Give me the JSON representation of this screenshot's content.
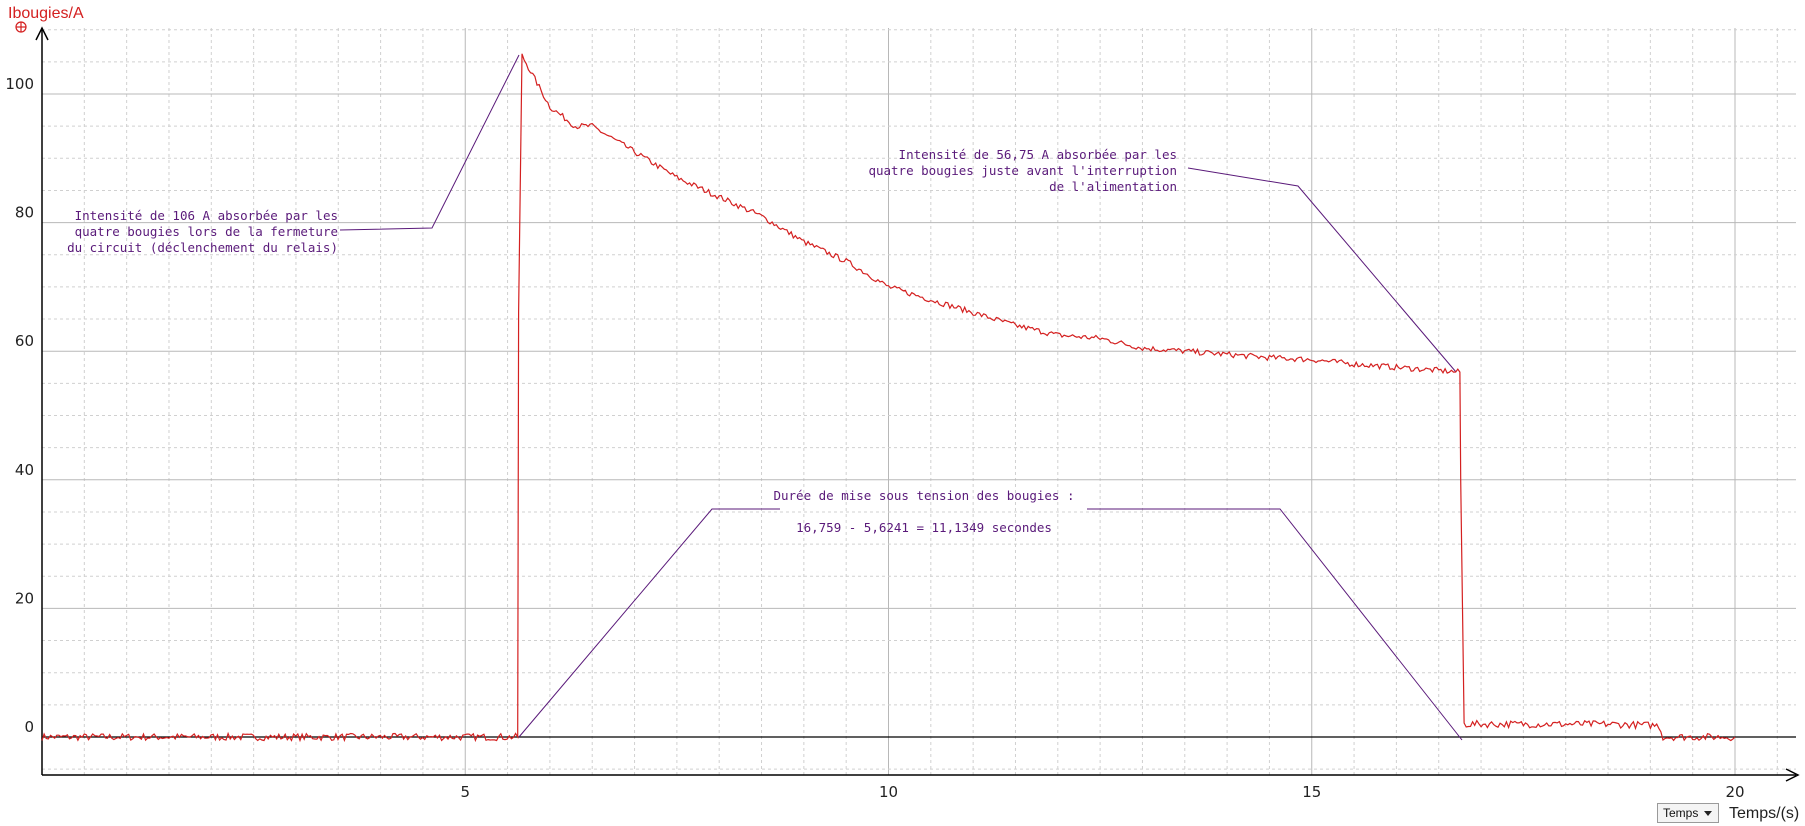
{
  "colors": {
    "signal": "#d42020",
    "annotation": "#5a1a7a",
    "axis": "#000000",
    "grid_major": "#b8b8b8",
    "grid_minor": "#d0d0d0",
    "ylabel": "#d42020"
  },
  "icons": {
    "cursor": "crosshair-icon"
  },
  "unit_selector": {
    "value": "Temps"
  },
  "chart_data": {
    "type": "line",
    "ylabel": "Ibougies/A",
    "xlabel": "Temps/(s)",
    "xlim": [
      0,
      20
    ],
    "ylim": [
      -5,
      110
    ],
    "x_ticks": [
      5,
      10,
      15,
      20
    ],
    "y_ticks": [
      0,
      20,
      40,
      60,
      80,
      100
    ],
    "grid": true,
    "series": [
      {
        "x": [
          0,
          5.62,
          5.63,
          5.67,
          6.0,
          6.3,
          6.5,
          7.0,
          7.5,
          8.0,
          8.5,
          9.0,
          9.5,
          10.0,
          10.5,
          11.0,
          11.5,
          12.0,
          12.5,
          13.0,
          13.5,
          14.0,
          14.5,
          15.0,
          15.5,
          16.0,
          16.5,
          16.75,
          16.76,
          16.8,
          17.5,
          18.5,
          19.1,
          19.15,
          20.0
        ],
        "y": [
          0,
          0,
          66,
          106,
          98,
          95,
          95,
          91,
          87,
          84,
          81,
          77,
          74,
          70,
          68,
          66,
          64,
          62.5,
          62,
          60.5,
          60,
          59.5,
          59,
          58.7,
          58,
          57.5,
          57,
          56.75,
          40,
          2,
          2,
          2,
          1.8,
          0,
          0
        ]
      }
    ],
    "annotations": [
      {
        "lines": [
          "Intensité de 106 A absorbée par les",
          "quatre bougies lors de la fermeture",
          "du circuit (déclenchement du relais)"
        ]
      },
      {
        "lines": [
          "Intensité de 56,75 A absorbée par les",
          "quatre bougies juste avant l'interruption",
          "de l'alimentation"
        ]
      },
      {
        "lines": [
          "Durée de mise sous tension des bougies :",
          "16,759 - 5,6241 = 11,1349 secondes"
        ]
      }
    ]
  }
}
